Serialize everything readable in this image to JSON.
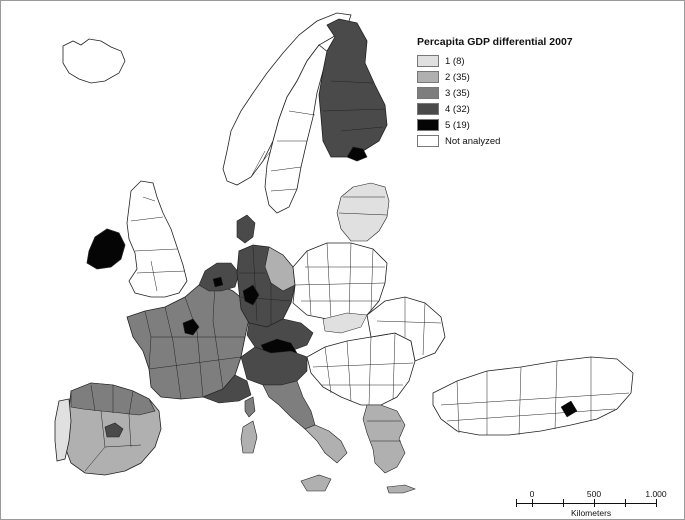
{
  "legend": {
    "title": "Percapita GDP differential 2007",
    "classes": [
      {
        "label": "1 (8)",
        "color": "#e0e0e0"
      },
      {
        "label": "2 (35)",
        "color": "#b0b0b0"
      },
      {
        "label": "3 (35)",
        "color": "#7e7e7e"
      },
      {
        "label": "4 (32)",
        "color": "#4a4a4a"
      },
      {
        "label": "5 (19)",
        "color": "#050505"
      },
      {
        "label": "Not analyzed",
        "color": "#ffffff"
      }
    ]
  },
  "scale": {
    "ticks": [
      "0",
      "500",
      "1.000"
    ],
    "unit": "Kilometers"
  },
  "colors": {
    "boundary": "#222222",
    "sea": "#ffffff"
  }
}
